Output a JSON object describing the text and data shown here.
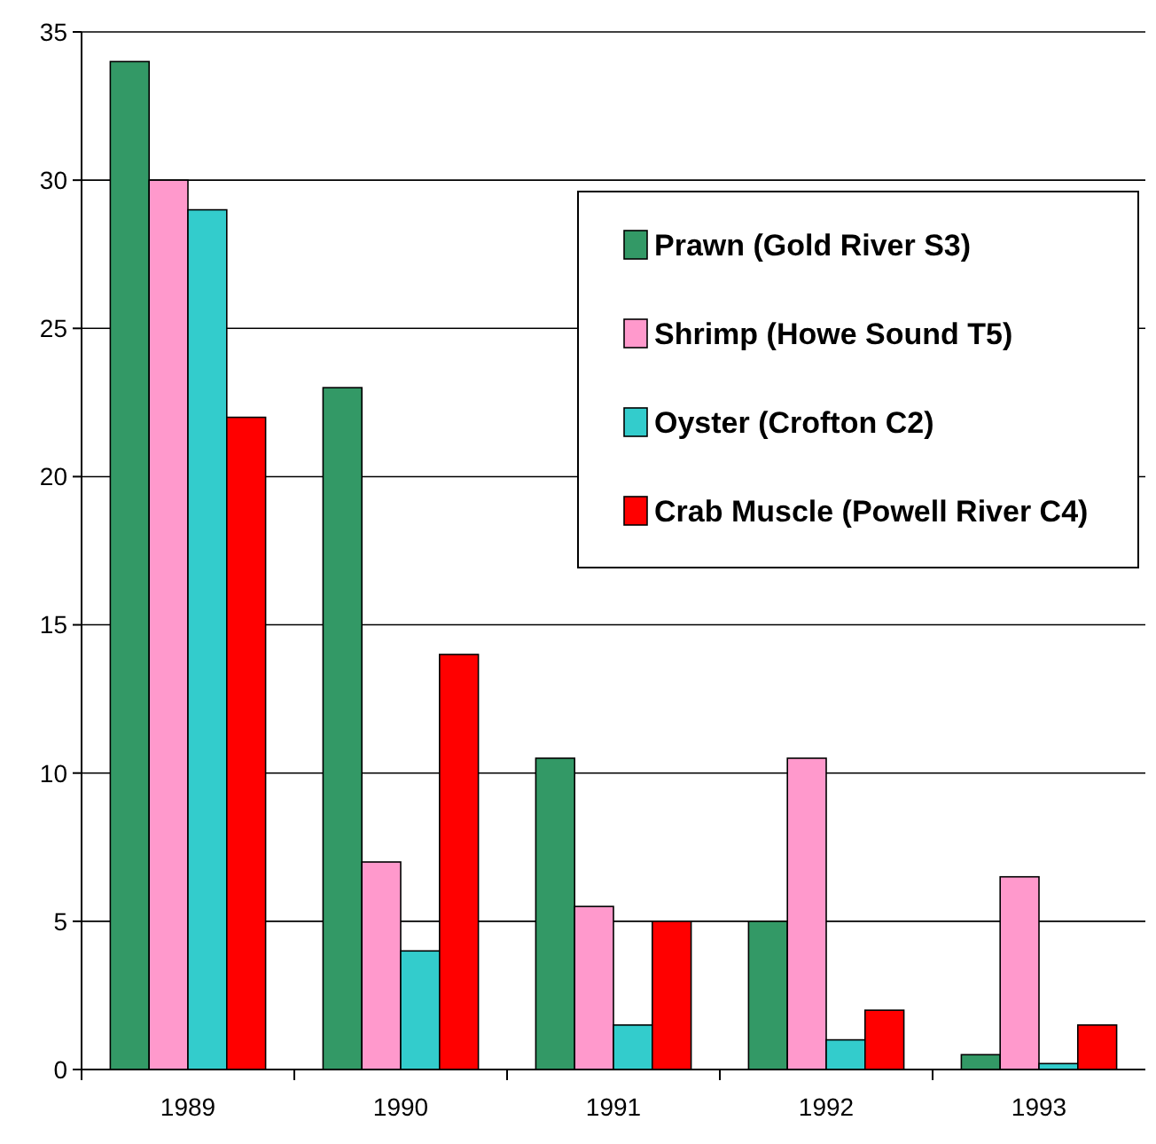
{
  "chart_data": {
    "type": "bar",
    "categories": [
      "1989",
      "1990",
      "1991",
      "1992",
      "1993"
    ],
    "series": [
      {
        "name": "Prawn (Gold River S3)",
        "color": "#339966",
        "values": [
          34,
          23,
          10.5,
          5,
          0.5
        ]
      },
      {
        "name": "Shrimp (Howe Sound T5)",
        "color": "#ff99cc",
        "values": [
          30,
          7,
          5.5,
          10.5,
          6.5
        ]
      },
      {
        "name": "Oyster (Crofton C2)",
        "color": "#33cccc",
        "values": [
          29,
          4,
          1.5,
          1,
          0.2
        ]
      },
      {
        "name": "Crab Muscle (Powell River C4)",
        "color": "#ff0000",
        "values": [
          22,
          14,
          5,
          2,
          1.5
        ]
      }
    ],
    "ylim": [
      0,
      35
    ],
    "yticks": [
      0,
      5,
      10,
      15,
      20,
      25,
      30,
      35
    ],
    "grid": "y",
    "legend": "top right"
  }
}
